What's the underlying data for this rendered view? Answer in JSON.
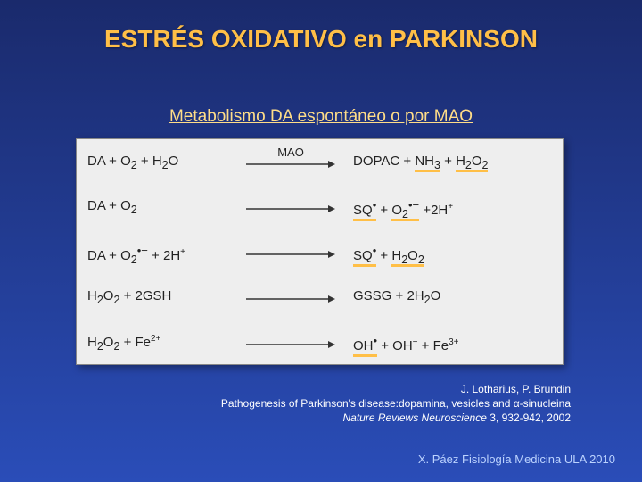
{
  "title": "ESTRÉS OXIDATIVO en PARKINSON",
  "subtitle": "Metabolismo DA espontáneo o por MAO",
  "panel": {
    "bg": "#eeeeee",
    "rows": [
      {
        "lhs": "DA + O<sub>2</sub> + H<sub>2</sub>O",
        "arrowLabel": "MAO",
        "rhs": "DOPAC + <span class='under'>NH<sub>3</sub></span> + <span class='under'>H<sub>2</sub>O<sub>2</sub></span>"
      },
      {
        "lhs": "DA + O<sub>2</sub>",
        "arrowLabel": "",
        "rhs": "<span class='under'>SQ<span class='dotrad'>•</span></span> + <span class='under'>O<sub>2</sub><span class='dotrad'>•−</span></span> +2H<span class='sup'>+</span>"
      },
      {
        "lhs": "DA + O<sub>2</sub><span class='dotrad'>•−</span> + 2H<span class='sup'>+</span>",
        "arrowLabel": "",
        "rhs": "<span class='under'>SQ<span class='dotrad'>•</span></span> + <span class='under'>H<sub>2</sub>O<sub>2</sub></span>"
      },
      {
        "lhs": "H<sub>2</sub>O<sub>2</sub> + 2GSH",
        "arrowLabel": "",
        "rhs": "GSSG + 2H<sub>2</sub>O"
      },
      {
        "lhs": "H<sub>2</sub>O<sub>2</sub> + Fe<span class='sup'>2+</span>",
        "arrowLabel": "",
        "rhs": "<span class='under'>OH<span class='dotrad'>•</span></span> + OH<span class='sup'>−</span> + Fe<span class='sup'>3+</span>"
      }
    ],
    "accent_color": "#ffbf47",
    "arrow_color": "#333333"
  },
  "citation": {
    "authors": "J. Lotharius, P. Brundin",
    "line2": "Pathogenesis of Parkinson's disease:dopamina, vesicles and α-sinucleina",
    "journal": "Nature Reviews Neuroscience",
    "ref": "3, 932-942, 2002"
  },
  "footer": "X. Páez Fisiología Medicina ULA 2010"
}
